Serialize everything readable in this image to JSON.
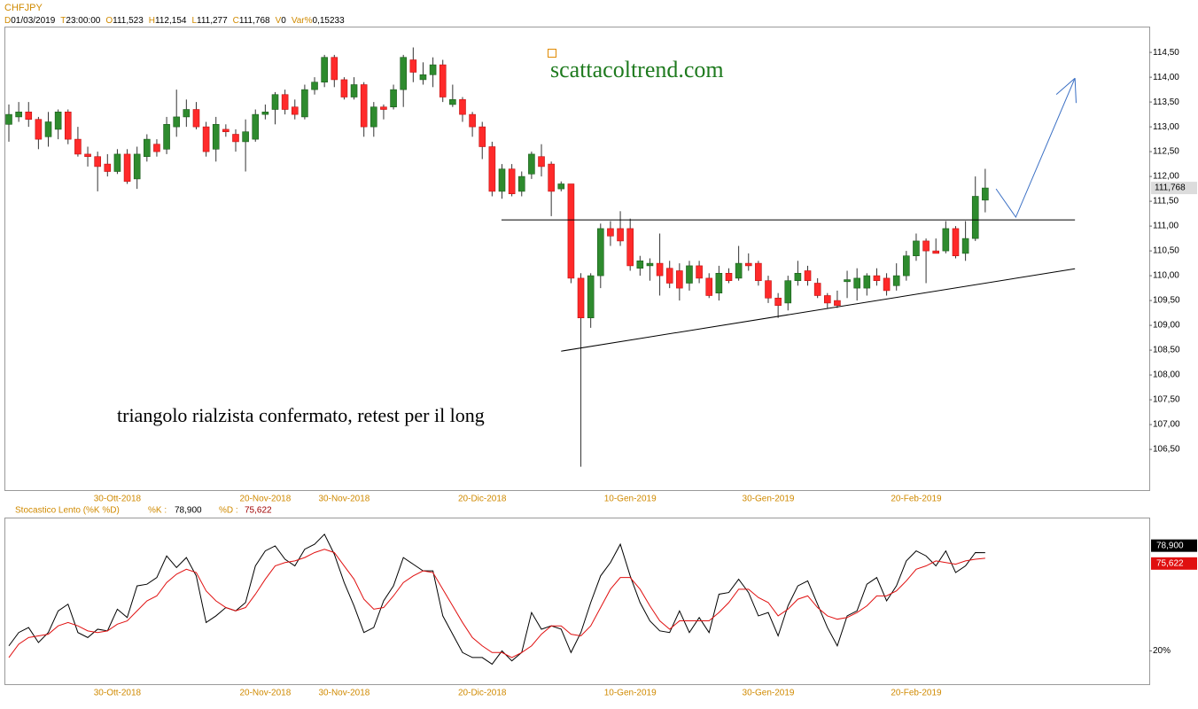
{
  "header": {
    "symbol": "CHFJPY",
    "fields": [
      {
        "key": "D",
        "text": "01/03/2019"
      },
      {
        "key": "T",
        "text": "23:00:00"
      },
      {
        "key": "O",
        "text": "111,523"
      },
      {
        "key": "H",
        "text": "112,154"
      },
      {
        "key": "L",
        "text": "111,277"
      },
      {
        "key": "C",
        "text": "111,768"
      },
      {
        "key": "V",
        "text": "0"
      },
      {
        "key": "Var%",
        "text": "0,15233"
      }
    ]
  },
  "chart_data": [
    {
      "type": "candlestick",
      "categories": [
        null,
        null,
        null,
        null,
        null,
        null,
        null,
        null,
        null,
        null,
        null,
        "30-Ott-2018",
        null,
        null,
        null,
        null,
        null,
        null,
        null,
        null,
        null,
        null,
        null,
        null,
        null,
        null,
        "20-Nov-2018",
        null,
        null,
        null,
        null,
        null,
        null,
        null,
        "30-Nov-2018",
        null,
        null,
        null,
        null,
        null,
        null,
        null,
        null,
        null,
        null,
        null,
        null,
        null,
        "20-Dic-2018",
        null,
        null,
        null,
        null,
        null,
        null,
        null,
        null,
        null,
        null,
        null,
        null,
        null,
        null,
        "10-Gen-2019",
        null,
        null,
        null,
        null,
        null,
        null,
        null,
        null,
        null,
        null,
        null,
        null,
        null,
        "30-Gen-2019",
        null,
        null,
        null,
        null,
        null,
        null,
        null,
        null,
        null,
        null,
        null,
        null,
        null,
        null,
        "20-Feb-2019",
        null,
        null,
        null,
        null,
        null,
        null,
        null
      ],
      "open": [
        113.05,
        113.2,
        113.3,
        113.15,
        112.8,
        112.95,
        113.3,
        112.75,
        112.45,
        112.4,
        112.25,
        112.1,
        112.45,
        111.95,
        112.4,
        112.65,
        112.55,
        113.0,
        113.2,
        113.35,
        113.0,
        112.55,
        112.95,
        112.85,
        112.7,
        112.75,
        113.25,
        113.35,
        113.65,
        113.4,
        113.2,
        113.75,
        113.9,
        114.4,
        113.95,
        113.6,
        113.85,
        113.0,
        113.4,
        113.4,
        113.75,
        114.35,
        113.95,
        114.05,
        114.25,
        113.45,
        113.55,
        113.25,
        113.0,
        112.6,
        111.7,
        112.15,
        111.7,
        112.05,
        112.4,
        112.25,
        111.75,
        111.85,
        109.95,
        109.15,
        110.0,
        110.95,
        110.95,
        110.95,
        110.15,
        110.2,
        110.25,
        110.15,
        110.1,
        109.85,
        110.2,
        109.95,
        109.65,
        110.05,
        109.95,
        110.25,
        110.25,
        109.9,
        109.55,
        109.45,
        109.9,
        110.1,
        109.85,
        109.6,
        109.5,
        109.88,
        109.75,
        109.75,
        110.0,
        109.95,
        109.8,
        110.0,
        110.4,
        110.7,
        110.5,
        110.5,
        110.95,
        110.45,
        110.75,
        111.523
      ],
      "high": [
        113.45,
        113.5,
        113.5,
        113.2,
        113.3,
        113.35,
        113.35,
        113.0,
        112.6,
        112.5,
        112.45,
        112.55,
        112.55,
        112.6,
        112.85,
        112.75,
        113.2,
        113.75,
        113.55,
        113.5,
        113.1,
        113.2,
        113.05,
        112.95,
        113.15,
        113.35,
        113.45,
        113.7,
        113.75,
        113.55,
        113.85,
        114.0,
        114.45,
        114.45,
        114.0,
        114.0,
        113.9,
        113.5,
        113.45,
        113.85,
        114.45,
        114.6,
        114.3,
        114.4,
        114.35,
        113.85,
        113.6,
        113.3,
        113.1,
        112.7,
        112.25,
        112.25,
        112.1,
        112.5,
        112.65,
        112.3,
        111.9,
        111.85,
        110.05,
        110.05,
        111.05,
        111.1,
        111.3,
        111.15,
        110.4,
        110.35,
        110.85,
        110.3,
        110.25,
        110.3,
        110.3,
        110.05,
        110.2,
        110.15,
        110.6,
        110.45,
        110.3,
        110.0,
        109.65,
        110.0,
        110.3,
        110.2,
        109.95,
        109.65,
        109.7,
        110.1,
        110.15,
        110.05,
        110.15,
        110.05,
        110.25,
        110.5,
        110.85,
        110.75,
        110.75,
        111.1,
        111.0,
        111.1,
        112.0,
        112.154
      ],
      "low": [
        112.7,
        113.1,
        113.0,
        112.55,
        112.6,
        112.75,
        112.65,
        112.4,
        112.2,
        111.7,
        112.0,
        112.05,
        111.85,
        111.75,
        112.3,
        112.4,
        112.45,
        112.8,
        113.0,
        112.95,
        112.4,
        112.3,
        112.8,
        112.5,
        112.1,
        112.7,
        113.15,
        113.05,
        113.25,
        113.15,
        113.15,
        113.65,
        113.8,
        113.8,
        113.55,
        113.55,
        112.8,
        112.8,
        113.15,
        113.35,
        113.4,
        113.9,
        113.85,
        113.8,
        113.5,
        113.4,
        113.1,
        112.8,
        112.35,
        111.6,
        111.55,
        111.6,
        111.6,
        111.95,
        112.0,
        111.2,
        111.7,
        109.85,
        106.15,
        108.95,
        109.75,
        110.6,
        110.6,
        110.1,
        110.0,
        109.9,
        109.6,
        109.75,
        109.5,
        109.7,
        109.85,
        109.55,
        109.5,
        109.85,
        109.9,
        110.1,
        109.8,
        109.45,
        109.15,
        109.3,
        109.8,
        109.8,
        109.55,
        109.35,
        109.35,
        109.55,
        109.5,
        109.6,
        109.8,
        109.6,
        109.7,
        109.9,
        110.3,
        109.85,
        110.45,
        110.45,
        110.35,
        110.3,
        110.7,
        111.277
      ],
      "close": [
        113.25,
        113.3,
        113.15,
        112.75,
        113.1,
        113.3,
        112.75,
        112.45,
        112.4,
        112.2,
        112.1,
        112.45,
        111.9,
        112.45,
        112.75,
        112.5,
        113.05,
        113.2,
        113.35,
        113.0,
        112.5,
        113.05,
        112.9,
        112.7,
        112.9,
        113.25,
        113.3,
        113.65,
        113.35,
        113.25,
        113.75,
        113.9,
        114.4,
        113.95,
        113.6,
        113.85,
        113.0,
        113.4,
        113.35,
        113.75,
        114.4,
        114.1,
        114.05,
        114.25,
        113.6,
        113.55,
        113.25,
        113.0,
        112.6,
        111.7,
        112.15,
        111.65,
        112.0,
        112.45,
        112.2,
        111.7,
        111.85,
        109.95,
        109.15,
        110.0,
        110.95,
        110.8,
        110.7,
        110.2,
        110.3,
        110.25,
        110.0,
        109.85,
        109.75,
        110.2,
        109.95,
        109.6,
        110.05,
        109.9,
        110.25,
        110.2,
        109.9,
        109.55,
        109.4,
        109.9,
        110.05,
        109.9,
        109.6,
        109.45,
        109.4,
        109.92,
        109.95,
        110.0,
        109.9,
        109.7,
        110.0,
        110.4,
        110.7,
        110.5,
        110.45,
        110.95,
        110.4,
        110.75,
        111.6,
        111.768
      ],
      "up_color": "#2e8b2e",
      "down_color": "#ff2a2a",
      "ylim": [
        105.68,
        115.02
      ],
      "yticks": [
        {
          "value": 106.5,
          "label": "106,50"
        },
        {
          "value": 107,
          "label": "107,00"
        },
        {
          "value": 107.5,
          "label": "107,50"
        },
        {
          "value": 108,
          "label": "108,00"
        },
        {
          "value": 108.5,
          "label": "108,50"
        },
        {
          "value": 109,
          "label": "109,00"
        },
        {
          "value": 109.5,
          "label": "109,50"
        },
        {
          "value": 110,
          "label": "110,00"
        },
        {
          "value": 110.5,
          "label": "110,50"
        },
        {
          "value": 111,
          "label": "111,00"
        },
        {
          "value": 111.5,
          "label": "111,50"
        },
        {
          "value": 112,
          "label": "112,00"
        },
        {
          "value": 112.5,
          "label": "112,50"
        },
        {
          "value": 113,
          "label": "113,00"
        },
        {
          "value": 113.5,
          "label": "113,50"
        },
        {
          "value": 114,
          "label": "114,00"
        },
        {
          "value": 114.5,
          "label": "114,50"
        }
      ],
      "last_price_label": "111,768",
      "site": "scattacoltrend.com",
      "note": "triangolo rialzista confermato, retest per il long",
      "lines": [
        {
          "color": "#000000",
          "x": [
            49.95,
            108.1
          ],
          "y": [
            111.125,
            111.125
          ]
        },
        {
          "color": "#000000",
          "x": [
            56.0,
            108.1
          ],
          "y": [
            108.48,
            110.14
          ]
        },
        {
          "color": "#3a6fc4",
          "x": [
            100.1,
            102.1,
            108.1
          ],
          "y": [
            111.75,
            111.18,
            113.98
          ]
        }
      ]
    },
    {
      "type": "line",
      "title": "Stocastico Lento (%K %D)",
      "series": [
        {
          "name": "%K :",
          "color": "#000000",
          "last_label": "78,900",
          "values": [
            23,
            31,
            34,
            25,
            31,
            44,
            48,
            31,
            28,
            33,
            32,
            45,
            40,
            59,
            60,
            64,
            77,
            70,
            76,
            65,
            37,
            41,
            46,
            44,
            49,
            71,
            80,
            83,
            75,
            71,
            81,
            84,
            90,
            78,
            61,
            47,
            31,
            34,
            50,
            59,
            76,
            72,
            68,
            68,
            41,
            30,
            19,
            16,
            16,
            12,
            20,
            14,
            19,
            43,
            33,
            35,
            33,
            19,
            31,
            49,
            65,
            73,
            84,
            65,
            49,
            38,
            32,
            31,
            44,
            31,
            40,
            31,
            54,
            55,
            63,
            55,
            41,
            43,
            29,
            47,
            59,
            62,
            48,
            34,
            23,
            41,
            44,
            60,
            64,
            50,
            59,
            74,
            80,
            77,
            71,
            80,
            67,
            71,
            79,
            78.9
          ]
        },
        {
          "name": "%D :",
          "color": "#e01010",
          "last_label": "75,622",
          "values": [
            16,
            24,
            28,
            29,
            30,
            35,
            37,
            35,
            32,
            31,
            32,
            36,
            38,
            44,
            50,
            53,
            61,
            66,
            69,
            67,
            56,
            50,
            46,
            44,
            46,
            54,
            63,
            71,
            73,
            74,
            76,
            79,
            81,
            79,
            71,
            63,
            51,
            45,
            46,
            53,
            61,
            65,
            68,
            67,
            57,
            47,
            37,
            28,
            23,
            19,
            19,
            16,
            19,
            23,
            30,
            35,
            35,
            30,
            29,
            35,
            46,
            57,
            64,
            64,
            57,
            47,
            38,
            33,
            38,
            38,
            38,
            38,
            43,
            49,
            57,
            57,
            52,
            49,
            41,
            45,
            51,
            53,
            46,
            41,
            39,
            40,
            43,
            47,
            53,
            53,
            56,
            62,
            69,
            71,
            74,
            73,
            72,
            74,
            75,
            75.622
          ]
        }
      ],
      "ylim": [
        0,
        100
      ],
      "yticks": [
        {
          "value": 20,
          "label": "20%"
        }
      ]
    }
  ]
}
